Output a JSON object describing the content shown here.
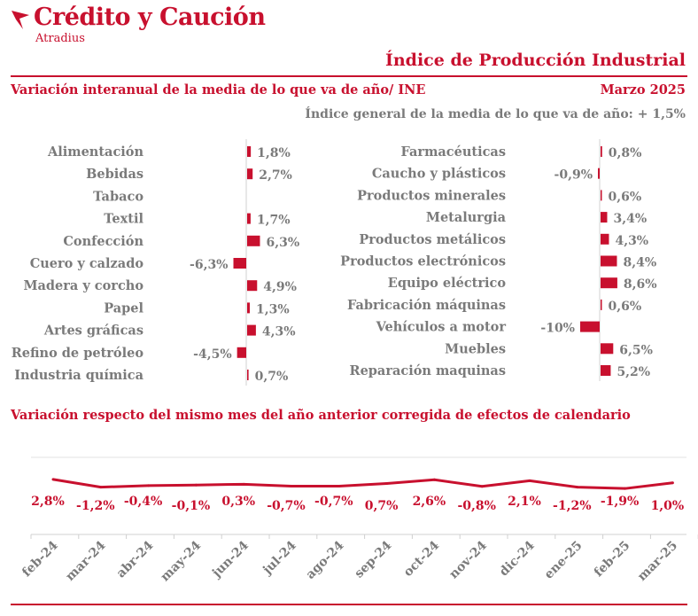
{
  "brand": {
    "name": "Crédito y Caución",
    "sub": "Atradius",
    "logo_icon": "red-flag-logo-icon"
  },
  "report": {
    "title": "Índice de Producción Industrial",
    "section1_title": "Variación interanual de la media de lo que va de año/ INE",
    "date": "Marzo 2025",
    "general_index": "Índice general de la media de lo que va de año: + 1,5%",
    "section2_title": "Variación respecto del mismo mes del año anterior corregida de efectos de calendario"
  },
  "colors": {
    "accent": "#c8102e",
    "text": "#7a7a7a",
    "axis": "#d0d0d0"
  },
  "chart_data": [
    {
      "type": "bar",
      "orientation": "horizontal",
      "categories": [
        "Alimentación",
        "Bebidas",
        "Tabaco",
        "Textil",
        "Confección",
        "Cuero y calzado",
        "Madera y corcho",
        "Papel",
        "Artes gráficas",
        "Refino de petróleo",
        "Industria química"
      ],
      "values": [
        1.8,
        2.7,
        null,
        1.7,
        6.3,
        -6.3,
        4.9,
        1.3,
        4.3,
        -4.5,
        0.7
      ],
      "labels": [
        "1,8%",
        "2,7%",
        "",
        "1,7%",
        "6,3%",
        "-6,3%",
        "4,9%",
        "1,3%",
        "4,3%",
        "-4,5%",
        "0,7%"
      ]
    },
    {
      "type": "bar",
      "orientation": "horizontal",
      "categories": [
        "Farmacéuticas",
        "Caucho y plásticos",
        "Productos minerales",
        "Metalurgia",
        "Productos metálicos",
        "Productos electrónicos",
        "Equipo eléctrico",
        "Fabricación máquinas",
        "Vehículos a motor",
        "Muebles",
        "Reparación maquinas"
      ],
      "values": [
        0.8,
        -0.9,
        0.6,
        3.4,
        4.3,
        8.4,
        8.6,
        0.6,
        -10,
        6.5,
        5.2
      ],
      "labels": [
        "0,8%",
        "-0,9%",
        "0,6%",
        "3,4%",
        "4,3%",
        "8,4%",
        "8,6%",
        "0,6%",
        "-10%",
        "6,5%",
        "5,2%"
      ]
    },
    {
      "type": "line",
      "x": [
        "feb-24",
        "mar-24",
        "abr-24",
        "may-24",
        "jun-24",
        "jul-24",
        "ago-24",
        "sep-24",
        "oct-24",
        "nov-24",
        "dic-24",
        "ene-25",
        "feb-25",
        "mar-25"
      ],
      "values": [
        2.8,
        -1.2,
        -0.4,
        -0.1,
        0.3,
        -0.7,
        -0.7,
        0.7,
        2.6,
        -0.8,
        2.1,
        -1.2,
        -1.9,
        1.0
      ],
      "labels": [
        "2,8%",
        "-1,2%",
        "-0,4%",
        "-0,1%",
        "0,3%",
        "-0,7%",
        "-0,7%",
        "0,7%",
        "2,6%",
        "-0,8%",
        "2,1%",
        "-1,2%",
        "-1,9%",
        "1,0%"
      ]
    }
  ]
}
